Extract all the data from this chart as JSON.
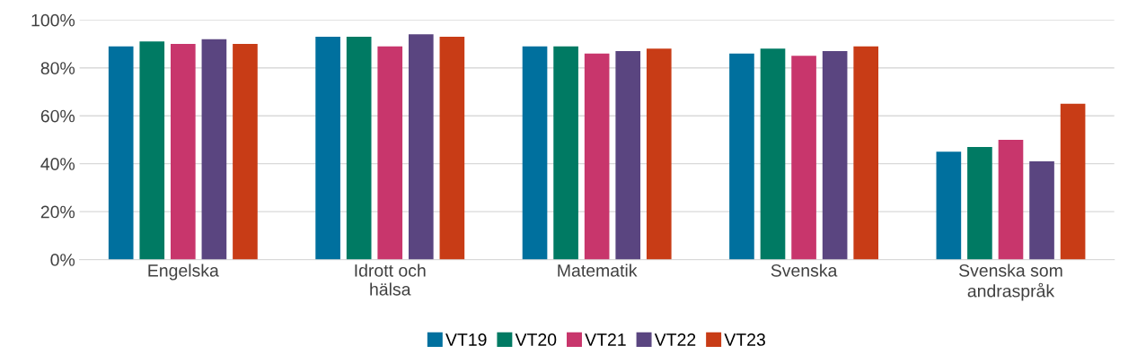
{
  "chart_data": {
    "type": "bar",
    "categories": [
      "Engelska",
      "Idrott och hälsa",
      "Matematik",
      "Svenska",
      "Svenska som andraspråk"
    ],
    "series": [
      {
        "name": "VT19",
        "color": "#00709e",
        "values": [
          89,
          93,
          89,
          86,
          45
        ]
      },
      {
        "name": "VT20",
        "color": "#007a63",
        "values": [
          91,
          93,
          89,
          88,
          47
        ]
      },
      {
        "name": "VT21",
        "color": "#c8366c",
        "values": [
          90,
          89,
          86,
          85,
          50
        ]
      },
      {
        "name": "VT22",
        "color": "#5a4580",
        "values": [
          92,
          94,
          87,
          87,
          41
        ]
      },
      {
        "name": "VT23",
        "color": "#c83c16",
        "values": [
          90,
          93,
          88,
          89,
          65
        ]
      }
    ],
    "ylim": [
      0,
      100
    ],
    "yticks": [
      {
        "value": 0,
        "label": "0%"
      },
      {
        "value": 20,
        "label": "20%"
      },
      {
        "value": 40,
        "label": "40%"
      },
      {
        "value": 60,
        "label": "60%"
      },
      {
        "value": 80,
        "label": "80%"
      },
      {
        "value": 100,
        "label": "100%"
      }
    ],
    "grid": "y",
    "legend": "bottom"
  }
}
